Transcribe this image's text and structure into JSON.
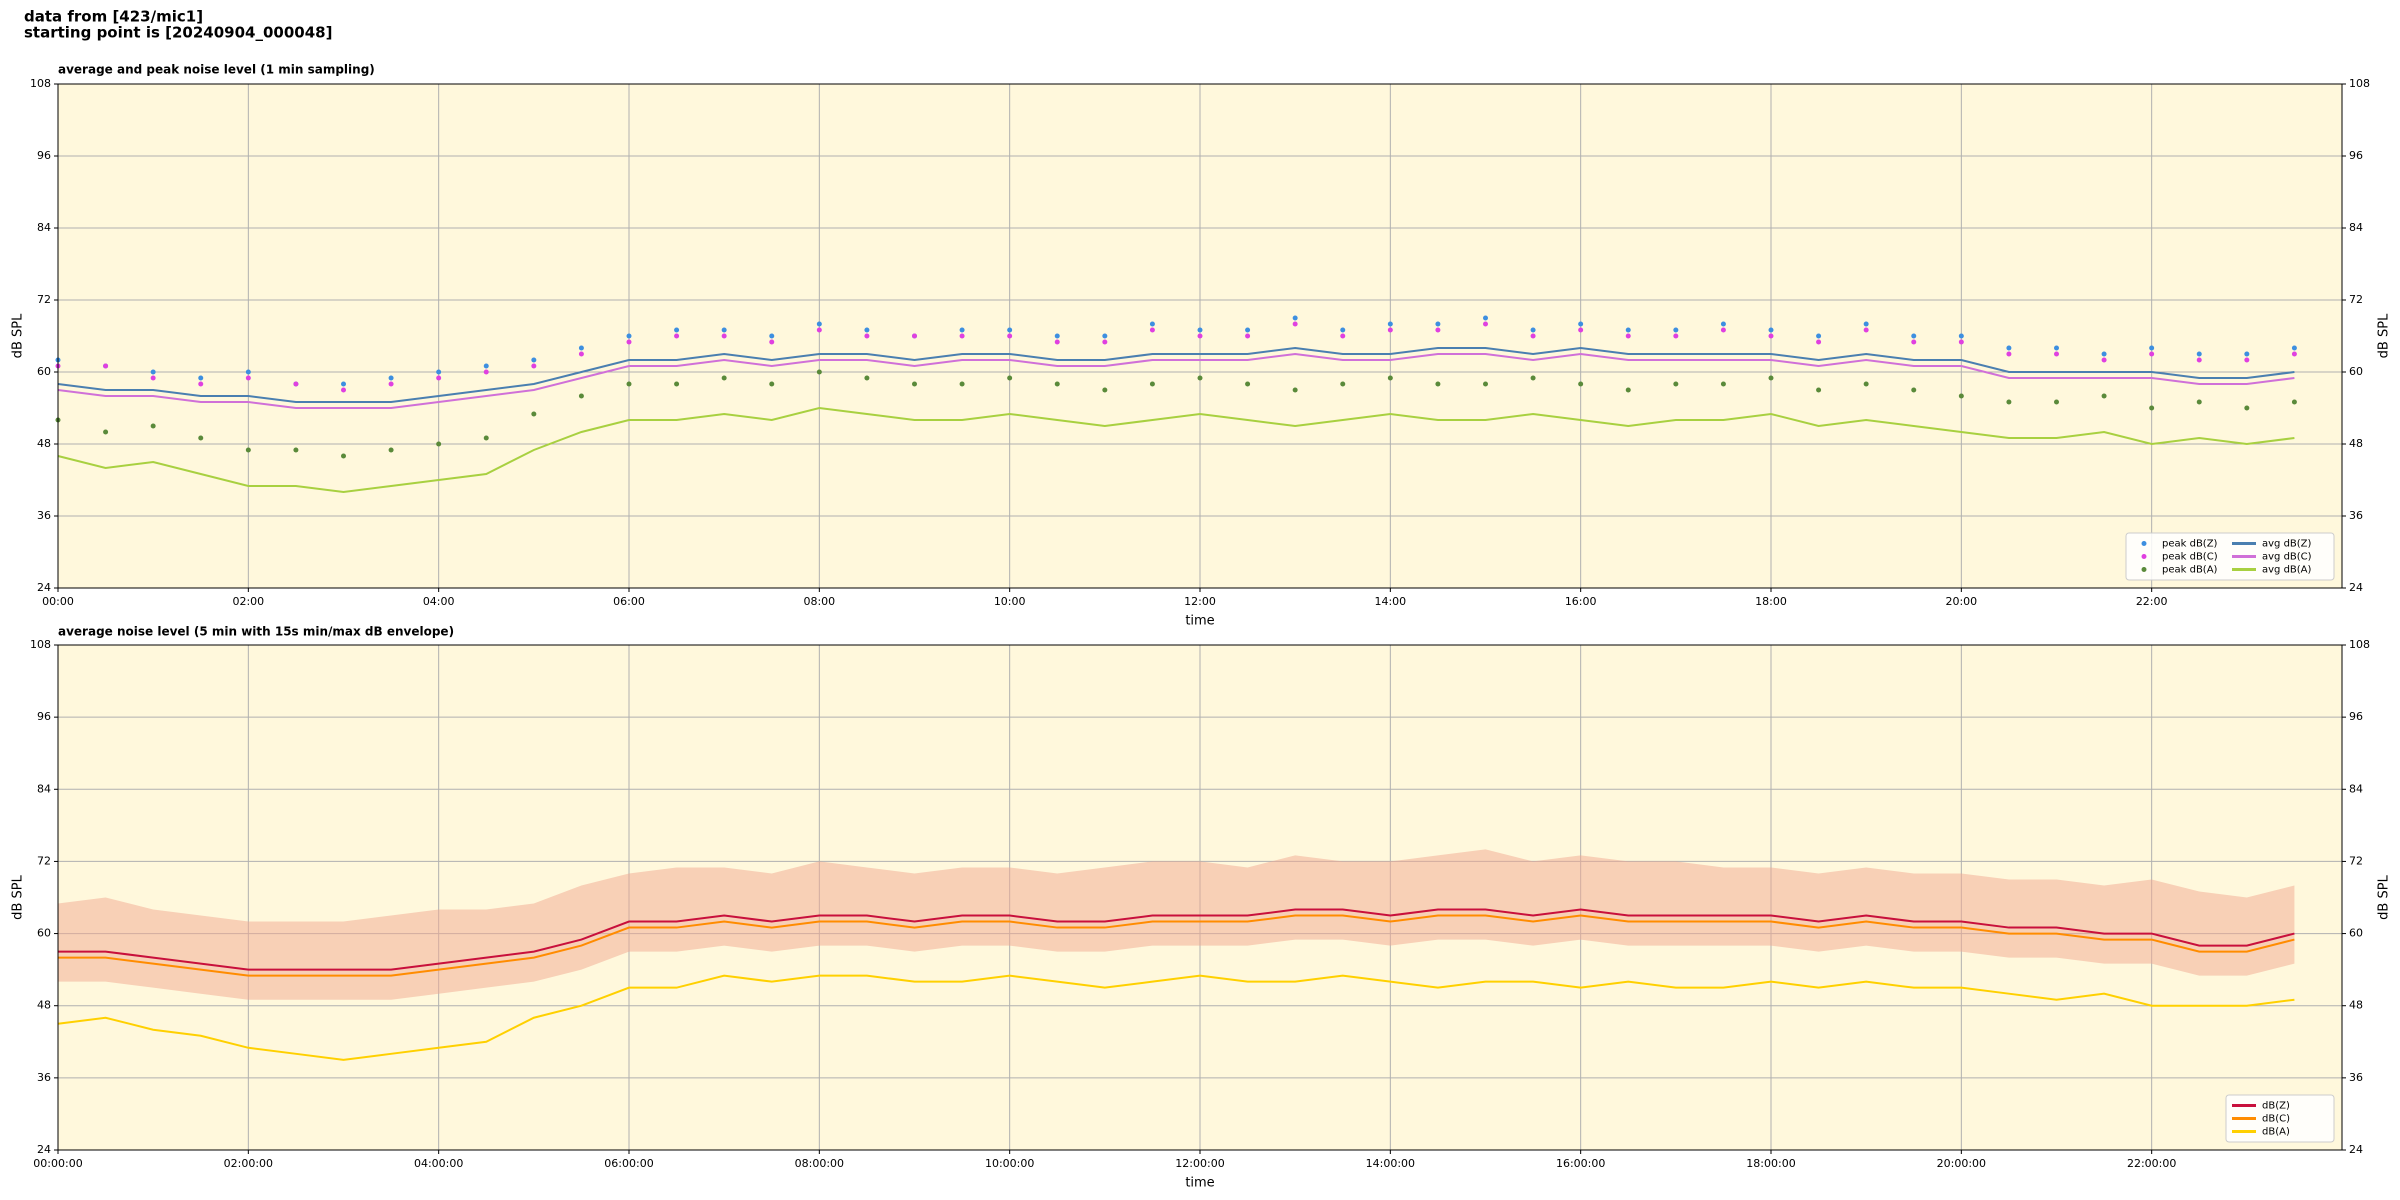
{
  "header": {
    "lines": [
      "data from [423/mic1]",
      "starting point is [20240904_000048]"
    ]
  },
  "chart_data": [
    {
      "type": "line",
      "title": "average and peak noise level (1 min sampling)",
      "xlabel": "time",
      "ylabel": "dB SPL",
      "x": [
        "00:00",
        "00:30",
        "01:00",
        "01:30",
        "02:00",
        "02:30",
        "03:00",
        "03:30",
        "04:00",
        "04:30",
        "05:00",
        "05:30",
        "06:00",
        "06:30",
        "07:00",
        "07:30",
        "08:00",
        "08:30",
        "09:00",
        "09:30",
        "10:00",
        "10:30",
        "11:00",
        "11:30",
        "12:00",
        "12:30",
        "13:00",
        "13:30",
        "14:00",
        "14:30",
        "15:00",
        "15:30",
        "16:00",
        "16:30",
        "17:00",
        "17:30",
        "18:00",
        "18:30",
        "19:00",
        "19:30",
        "20:00",
        "20:30",
        "21:00",
        "21:30",
        "22:00",
        "22:30",
        "23:00",
        "23:30"
      ],
      "xlim": [
        "00:00",
        "24:00"
      ],
      "xticks": [
        "00:00",
        "02:00",
        "04:00",
        "06:00",
        "08:00",
        "10:00",
        "12:00",
        "14:00",
        "16:00",
        "18:00",
        "20:00",
        "22:00"
      ],
      "ylim": [
        24,
        108
      ],
      "yticks": [
        24,
        36,
        48,
        60,
        72,
        84,
        96,
        108
      ],
      "grid": true,
      "legend": "lower right",
      "legend_columns": 2,
      "series": [
        {
          "name": "peak dB(Z)",
          "kind": "scatter",
          "color": "#3d8fe0",
          "values": [
            62,
            61,
            60,
            59,
            60,
            58,
            58,
            59,
            60,
            61,
            62,
            64,
            66,
            67,
            67,
            66,
            68,
            67,
            66,
            67,
            67,
            66,
            66,
            68,
            67,
            67,
            69,
            67,
            68,
            68,
            69,
            67,
            68,
            67,
            67,
            68,
            67,
            66,
            68,
            66,
            66,
            64,
            64,
            63,
            64,
            63,
            63,
            64
          ]
        },
        {
          "name": "peak dB(C)",
          "kind": "scatter",
          "color": "#e040e0",
          "values": [
            61,
            61,
            59,
            58,
            59,
            58,
            57,
            58,
            59,
            60,
            61,
            63,
            65,
            66,
            66,
            65,
            67,
            66,
            66,
            66,
            66,
            65,
            65,
            67,
            66,
            66,
            68,
            66,
            67,
            67,
            68,
            66,
            67,
            66,
            66,
            67,
            66,
            65,
            67,
            65,
            65,
            63,
            63,
            62,
            63,
            62,
            62,
            63
          ]
        },
        {
          "name": "peak dB(A)",
          "kind": "scatter",
          "color": "#5a8a3a",
          "values": [
            52,
            50,
            51,
            49,
            47,
            47,
            46,
            47,
            48,
            49,
            53,
            56,
            58,
            58,
            59,
            58,
            60,
            59,
            58,
            58,
            59,
            58,
            57,
            58,
            59,
            58,
            57,
            58,
            59,
            58,
            58,
            59,
            58,
            57,
            58,
            58,
            59,
            57,
            58,
            57,
            56,
            55,
            55,
            56,
            54,
            55,
            54,
            55
          ]
        },
        {
          "name": "avg dB(Z)",
          "kind": "line",
          "color": "#4a7fb0",
          "values": [
            58,
            57,
            57,
            56,
            56,
            55,
            55,
            55,
            56,
            57,
            58,
            60,
            62,
            62,
            63,
            62,
            63,
            63,
            62,
            63,
            63,
            62,
            62,
            63,
            63,
            63,
            64,
            63,
            63,
            64,
            64,
            63,
            64,
            63,
            63,
            63,
            63,
            62,
            63,
            62,
            62,
            60,
            60,
            60,
            60,
            59,
            59,
            60
          ]
        },
        {
          "name": "avg dB(C)",
          "kind": "line",
          "color": "#d070d8",
          "values": [
            57,
            56,
            56,
            55,
            55,
            54,
            54,
            54,
            55,
            56,
            57,
            59,
            61,
            61,
            62,
            61,
            62,
            62,
            61,
            62,
            62,
            61,
            61,
            62,
            62,
            62,
            63,
            62,
            62,
            63,
            63,
            62,
            63,
            62,
            62,
            62,
            62,
            61,
            62,
            61,
            61,
            59,
            59,
            59,
            59,
            58,
            58,
            59
          ]
        },
        {
          "name": "avg dB(A)",
          "kind": "line",
          "color": "#a8d040",
          "values": [
            46,
            44,
            45,
            43,
            41,
            41,
            40,
            41,
            42,
            43,
            47,
            50,
            52,
            52,
            53,
            52,
            54,
            53,
            52,
            52,
            53,
            52,
            51,
            52,
            53,
            52,
            51,
            52,
            53,
            52,
            52,
            53,
            52,
            51,
            52,
            52,
            53,
            51,
            52,
            51,
            50,
            49,
            49,
            50,
            48,
            49,
            48,
            49
          ]
        }
      ]
    },
    {
      "type": "line",
      "title": "average noise level (5 min with 15s min/max dB envelope)",
      "xlabel": "time",
      "ylabel": "dB SPL",
      "x": [
        "00:00:00",
        "00:30:00",
        "01:00:00",
        "01:30:00",
        "02:00:00",
        "02:30:00",
        "03:00:00",
        "03:30:00",
        "04:00:00",
        "04:30:00",
        "05:00:00",
        "05:30:00",
        "06:00:00",
        "06:30:00",
        "07:00:00",
        "07:30:00",
        "08:00:00",
        "08:30:00",
        "09:00:00",
        "09:30:00",
        "10:00:00",
        "10:30:00",
        "11:00:00",
        "11:30:00",
        "12:00:00",
        "12:30:00",
        "13:00:00",
        "13:30:00",
        "14:00:00",
        "14:30:00",
        "15:00:00",
        "15:30:00",
        "16:00:00",
        "16:30:00",
        "17:00:00",
        "17:30:00",
        "18:00:00",
        "18:30:00",
        "19:00:00",
        "19:30:00",
        "20:00:00",
        "20:30:00",
        "21:00:00",
        "21:30:00",
        "22:00:00",
        "22:30:00",
        "23:00:00",
        "23:30:00"
      ],
      "xlim": [
        "00:00:00",
        "24:00:00"
      ],
      "xticks": [
        "00:00:00",
        "02:00:00",
        "04:00:00",
        "06:00:00",
        "08:00:00",
        "10:00:00",
        "12:00:00",
        "14:00:00",
        "16:00:00",
        "18:00:00",
        "20:00:00",
        "22:00:00"
      ],
      "ylim": [
        24,
        108
      ],
      "yticks": [
        24,
        36,
        48,
        60,
        72,
        84,
        96,
        108
      ],
      "grid": true,
      "legend": "lower right",
      "legend_columns": 1,
      "envelope": {
        "color": "#f2a890",
        "low": [
          52,
          52,
          51,
          50,
          49,
          49,
          49,
          49,
          50,
          51,
          52,
          54,
          57,
          57,
          58,
          57,
          58,
          58,
          57,
          58,
          58,
          57,
          57,
          58,
          58,
          58,
          59,
          59,
          58,
          59,
          59,
          58,
          59,
          58,
          58,
          58,
          58,
          57,
          58,
          57,
          57,
          56,
          56,
          55,
          55,
          53,
          53,
          55
        ],
        "high": [
          65,
          66,
          64,
          63,
          62,
          62,
          62,
          63,
          64,
          64,
          65,
          68,
          70,
          71,
          71,
          70,
          72,
          71,
          70,
          71,
          71,
          70,
          71,
          72,
          72,
          71,
          73,
          72,
          72,
          73,
          74,
          72,
          73,
          72,
          72,
          71,
          71,
          70,
          71,
          70,
          70,
          69,
          69,
          68,
          69,
          67,
          66,
          68
        ]
      },
      "series": [
        {
          "name": "dB(Z)",
          "kind": "line",
          "color": "#c8103c",
          "values": [
            57,
            57,
            56,
            55,
            54,
            54,
            54,
            54,
            55,
            56,
            57,
            59,
            62,
            62,
            63,
            62,
            63,
            63,
            62,
            63,
            63,
            62,
            62,
            63,
            63,
            63,
            64,
            64,
            63,
            64,
            64,
            63,
            64,
            63,
            63,
            63,
            63,
            62,
            63,
            62,
            62,
            61,
            61,
            60,
            60,
            58,
            58,
            60
          ]
        },
        {
          "name": "dB(C)",
          "kind": "line",
          "color": "#ff8c00",
          "values": [
            56,
            56,
            55,
            54,
            53,
            53,
            53,
            53,
            54,
            55,
            56,
            58,
            61,
            61,
            62,
            61,
            62,
            62,
            61,
            62,
            62,
            61,
            61,
            62,
            62,
            62,
            63,
            63,
            62,
            63,
            63,
            62,
            63,
            62,
            62,
            62,
            62,
            61,
            62,
            61,
            61,
            60,
            60,
            59,
            59,
            57,
            57,
            59
          ]
        },
        {
          "name": "dB(A)",
          "kind": "line",
          "color": "#ffd000",
          "values": [
            45,
            46,
            44,
            43,
            41,
            40,
            39,
            40,
            41,
            42,
            46,
            48,
            51,
            51,
            53,
            52,
            53,
            53,
            52,
            52,
            53,
            52,
            51,
            52,
            53,
            52,
            52,
            53,
            52,
            51,
            52,
            52,
            51,
            52,
            51,
            51,
            52,
            51,
            52,
            51,
            51,
            50,
            49,
            50,
            48,
            48,
            48,
            49
          ]
        }
      ]
    }
  ]
}
